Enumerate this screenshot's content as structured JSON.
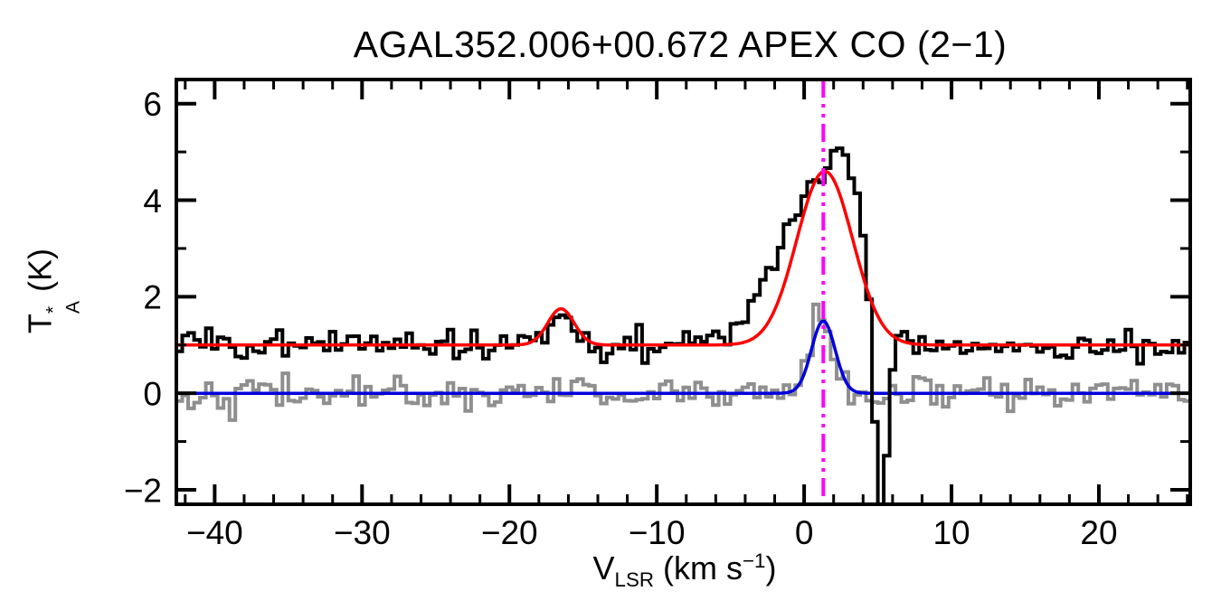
{
  "page": {
    "background": "#FFFFFF"
  },
  "labels": {
    "y": {
      "main": "T",
      "sup": "*",
      "sub": "A",
      "unit": "(K)"
    },
    "x": {
      "main": "V",
      "sub": "LSR",
      "unit_pre": "(km s",
      "sup": "−1",
      "unit_post": ")"
    }
  },
  "chart_data": {
    "type": "line",
    "title": "AGAL352.006+00.672  APEX CO (2−1)",
    "xlabel": "V_LSR (km s^−1)",
    "ylabel": "T*_A (K)",
    "xlim": [
      -42.6,
      26.2
    ],
    "ylim": [
      -2.3,
      6.5
    ],
    "x_major_ticks": [
      -40,
      -30,
      -20,
      -10,
      0,
      10,
      20
    ],
    "x_minor_step": 2,
    "y_major_ticks": [
      -2,
      0,
      2,
      4,
      6
    ],
    "y_minor_step": 1,
    "grid": false,
    "legend": false,
    "frame_color": "#000000",
    "vline": {
      "x": 1.3,
      "color": "#FF00FF",
      "style": "dash-dot-dot"
    },
    "bin_width": 0.4,
    "noise_seed": 42,
    "series": [
      {
        "name": "reference-spectrum",
        "style": "histogram",
        "color": "#8F8F8F",
        "line_width": 4,
        "baseline": 0.0,
        "noise_sigma": 0.17,
        "components": [
          {
            "center": 1.1,
            "amp": 1.55,
            "sigma": 0.75
          }
        ]
      },
      {
        "name": "reference-model-fit",
        "style": "curve",
        "color": "#0000DD",
        "line_width": 3.5,
        "baseline": 0.0,
        "components": [
          {
            "center": 1.3,
            "amp": 1.5,
            "sigma": 0.8
          }
        ]
      },
      {
        "name": "observed-spectrum",
        "style": "histogram",
        "color": "#000000",
        "line_width": 4,
        "baseline": 1.0,
        "noise_sigma": 0.16,
        "components": [
          {
            "center": -16.5,
            "amp": 0.8,
            "sigma": 0.9
          },
          {
            "center": 0.8,
            "amp": 3.2,
            "sigma": 2.6
          },
          {
            "center": 2.9,
            "amp": 1.6,
            "sigma": 1.0
          },
          {
            "center": 5.2,
            "amp": -4.0,
            "sigma": 0.5
          }
        ]
      },
      {
        "name": "observed-model-fit",
        "style": "curve",
        "color": "#FF0000",
        "line_width": 3.5,
        "baseline": 1.0,
        "components": [
          {
            "center": 1.4,
            "amp": 3.6,
            "sigma": 1.9
          },
          {
            "center": -16.5,
            "amp": 0.75,
            "sigma": 0.9
          }
        ]
      }
    ]
  }
}
